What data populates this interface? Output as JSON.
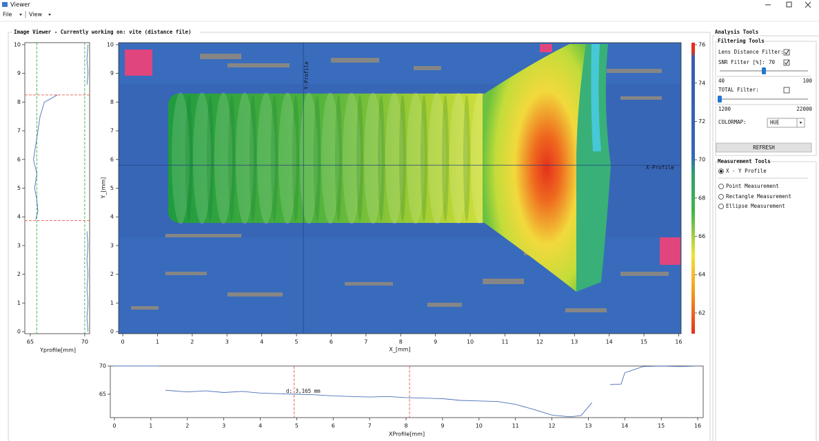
{
  "window": {
    "title": "Viewer"
  },
  "menu": [
    "File",
    "View"
  ],
  "image_viewer_title": "Image Viewer - Currently working on: vite (distance file)",
  "chart_data": [
    {
      "type": "heatmap",
      "xlabel": "X_[mm]",
      "ylabel": "Y_[mm]",
      "xlim": [
        -0.12,
        16.07
      ],
      "ylim": [
        -0.07,
        10.07
      ],
      "xticks": [
        0,
        1,
        2,
        3,
        4,
        5,
        6,
        7,
        8,
        9,
        10,
        11,
        12,
        13,
        14,
        15,
        16
      ],
      "yticks": [
        0,
        1,
        2,
        3,
        4,
        5,
        6,
        7,
        8,
        9,
        10
      ],
      "y_profile_label": "Y-Profile",
      "x_profile_label": "X-Profile",
      "y_profile_x": 5.2,
      "x_profile_y": 5.8,
      "crosshair_color": "#1f3f7a",
      "colorbar": {
        "lim": [
          60.92,
          76.11
        ],
        "ticks": [
          62,
          64,
          66,
          68,
          70,
          72,
          74,
          76
        ]
      }
    },
    {
      "type": "line",
      "xlabel": "Yprofile[mm]",
      "color": "#4a6fb5",
      "xlim": [
        64.5,
        70.45
      ],
      "xticks": [
        65,
        70
      ],
      "ylim": [
        -0.07,
        10.07
      ],
      "yticks": [
        0,
        1,
        2,
        3,
        4,
        5,
        6,
        7,
        8,
        9,
        10
      ],
      "positions": [
        0,
        0.5,
        1,
        1.5,
        2,
        2.5,
        3,
        3.5,
        3.7,
        3.9,
        4.2,
        4.6,
        5,
        5.5,
        6,
        6.5,
        7,
        7.5,
        8,
        8.1,
        8.25,
        8.3,
        8.6,
        9,
        9.5,
        10
      ],
      "values": [
        70.3,
        70.2,
        70.3,
        70.2,
        70.3,
        70.2,
        70.3,
        70.2,
        null,
        65.5,
        65.7,
        65.6,
        65.4,
        65.6,
        65.3,
        65.5,
        65.7,
        65.9,
        66.3,
        66.8,
        67.5,
        null,
        70.2,
        70.3,
        70.2,
        70.3
      ],
      "guide_values": [
        65.6,
        70
      ],
      "cursor_positions": [
        3.87,
        8.25
      ]
    },
    {
      "type": "line",
      "xlabel": "XProfile[mm]",
      "color": "#4a6fb5",
      "xlim": [
        -0.113,
        16.15
      ],
      "xticks": [
        0,
        1,
        2,
        3,
        4,
        5,
        6,
        7,
        8,
        9,
        10,
        11,
        12,
        13,
        14,
        15,
        16
      ],
      "ylim": [
        60.85,
        70
      ],
      "yticks": [
        65,
        70
      ],
      "x": [
        0,
        0.6,
        1.2,
        1.3,
        1.4,
        2,
        2.5,
        3,
        3.5,
        4,
        4.5,
        5,
        5.5,
        6,
        6.5,
        7,
        7.5,
        8,
        8.5,
        9,
        9.5,
        10,
        10.5,
        11,
        11.5,
        12,
        12.5,
        12.8,
        13.1,
        13.3,
        13.6,
        13.9,
        14,
        14.5,
        15,
        15.5,
        16
      ],
      "values": [
        70,
        70,
        70,
        null,
        65.7,
        65.4,
        65.6,
        65.3,
        65.5,
        65.2,
        65.1,
        65,
        64.9,
        64.7,
        64.6,
        64.5,
        64.6,
        64.4,
        64.3,
        64.2,
        63.9,
        63.8,
        63.7,
        63.2,
        62.3,
        61.3,
        61,
        61.2,
        63.5,
        null,
        66.7,
        66.8,
        68.8,
        69.9,
        70,
        69.9,
        70
      ],
      "cursor_positions": [
        4.93,
        8.095
      ],
      "annotation": "d: 3,165 mm"
    }
  ],
  "analysis_tools": {
    "title": "Analysis Tools",
    "filtering": {
      "title": "Filtering Tools",
      "lens_filter": {
        "label": "Lens Distance Filter:",
        "checked": true
      },
      "snr_filter": {
        "label": "SNR Filter [%]:",
        "value": 70,
        "checked": true,
        "min": 40,
        "max": 100
      },
      "total_filter": {
        "label": "TOTAL Filter:",
        "checked": false,
        "value": 1200,
        "min": 1200,
        "max": 22000
      },
      "colormap": {
        "label": "COLORMAP:",
        "value": "HUE"
      },
      "refresh": "REFRESH"
    },
    "measurement": {
      "title": "Measurement Tools",
      "options": [
        "X - Y Profile",
        "Point Measurement",
        "Rectangle Measurement",
        "Ellipse Measurement"
      ],
      "selected": 0
    }
  }
}
